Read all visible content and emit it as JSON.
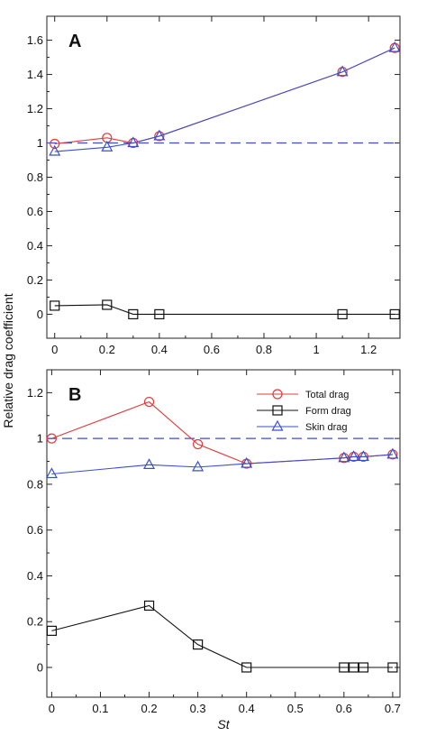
{
  "figure": {
    "ylabel": "Relative drag coefficient",
    "xlabel": "St"
  },
  "chart_data": [
    {
      "type": "line",
      "panel_label": "A",
      "xlim": [
        -0.03,
        1.32
      ],
      "ylim": [
        -0.14,
        1.74
      ],
      "xticks": [
        0,
        0.2,
        0.4,
        0.6,
        0.8,
        1,
        1.2
      ],
      "xtick_labels": [
        "0",
        "0.2",
        "0.4",
        "0.6",
        "0.8",
        "1",
        "1.2"
      ],
      "yticks": [
        0,
        0.2,
        0.4,
        0.6,
        0.8,
        1,
        1.2,
        1.4,
        1.6
      ],
      "ytick_labels": [
        "0",
        "0.2",
        "0.4",
        "0.6",
        "0.8",
        "1",
        "1.2",
        "1.4",
        "1.6"
      ],
      "reference_line": {
        "y": 1.0,
        "style": "dashed",
        "color": "#3a4fd0"
      },
      "series": [
        {
          "key": "total",
          "marker": "circle",
          "color": "#e23b3b",
          "x": [
            0,
            0.2,
            0.3,
            0.4,
            1.1,
            1.3
          ],
          "y": [
            0.995,
            1.03,
            1.0,
            1.04,
            1.415,
            1.555
          ]
        },
        {
          "key": "form",
          "marker": "square",
          "color": "#111111",
          "x": [
            0,
            0.2,
            0.3,
            0.4,
            1.1,
            1.3
          ],
          "y": [
            0.05,
            0.055,
            0.0,
            0.0,
            0.0,
            0.0
          ]
        },
        {
          "key": "skin",
          "marker": "triangle",
          "color": "#3a4fd0",
          "x": [
            0,
            0.2,
            0.3,
            0.4,
            1.1,
            1.3
          ],
          "y": [
            0.95,
            0.975,
            1.0,
            1.04,
            1.415,
            1.555
          ]
        }
      ]
    },
    {
      "type": "line",
      "panel_label": "B",
      "xlim": [
        -0.01,
        0.715
      ],
      "ylim": [
        -0.13,
        1.3
      ],
      "xticks": [
        0,
        0.1,
        0.2,
        0.3,
        0.4,
        0.5,
        0.6,
        0.7
      ],
      "xtick_labels": [
        "0",
        "0.1",
        "0.2",
        "0.3",
        "0.4",
        "0.5",
        "0.6",
        "0.7"
      ],
      "yticks": [
        0,
        0.2,
        0.4,
        0.6,
        0.8,
        1,
        1.2
      ],
      "ytick_labels": [
        "0",
        "0.2",
        "0.4",
        "0.6",
        "0.8",
        "1",
        "1.2"
      ],
      "reference_line": {
        "y": 1.0,
        "style": "dashed",
        "color": "#3a4fd0"
      },
      "legend": {
        "position": "top-right"
      },
      "series": [
        {
          "key": "total",
          "name": "Total drag",
          "marker": "circle",
          "color": "#e23b3b",
          "x": [
            0,
            0.2,
            0.3,
            0.4,
            0.6,
            0.62,
            0.64,
            0.7
          ],
          "y": [
            1.0,
            1.16,
            0.975,
            0.89,
            0.915,
            0.92,
            0.92,
            0.93
          ]
        },
        {
          "key": "form",
          "name": "Form drag",
          "marker": "square",
          "color": "#111111",
          "x": [
            0,
            0.2,
            0.3,
            0.4,
            0.6,
            0.62,
            0.64,
            0.7
          ],
          "y": [
            0.16,
            0.27,
            0.1,
            0.0,
            0.0,
            0.0,
            0.0,
            0.0
          ]
        },
        {
          "key": "skin",
          "name": "Skin drag",
          "marker": "triangle",
          "color": "#3a4fd0",
          "x": [
            0,
            0.2,
            0.3,
            0.4,
            0.6,
            0.62,
            0.64,
            0.7
          ],
          "y": [
            0.845,
            0.885,
            0.875,
            0.89,
            0.915,
            0.92,
            0.92,
            0.93
          ]
        }
      ]
    }
  ]
}
